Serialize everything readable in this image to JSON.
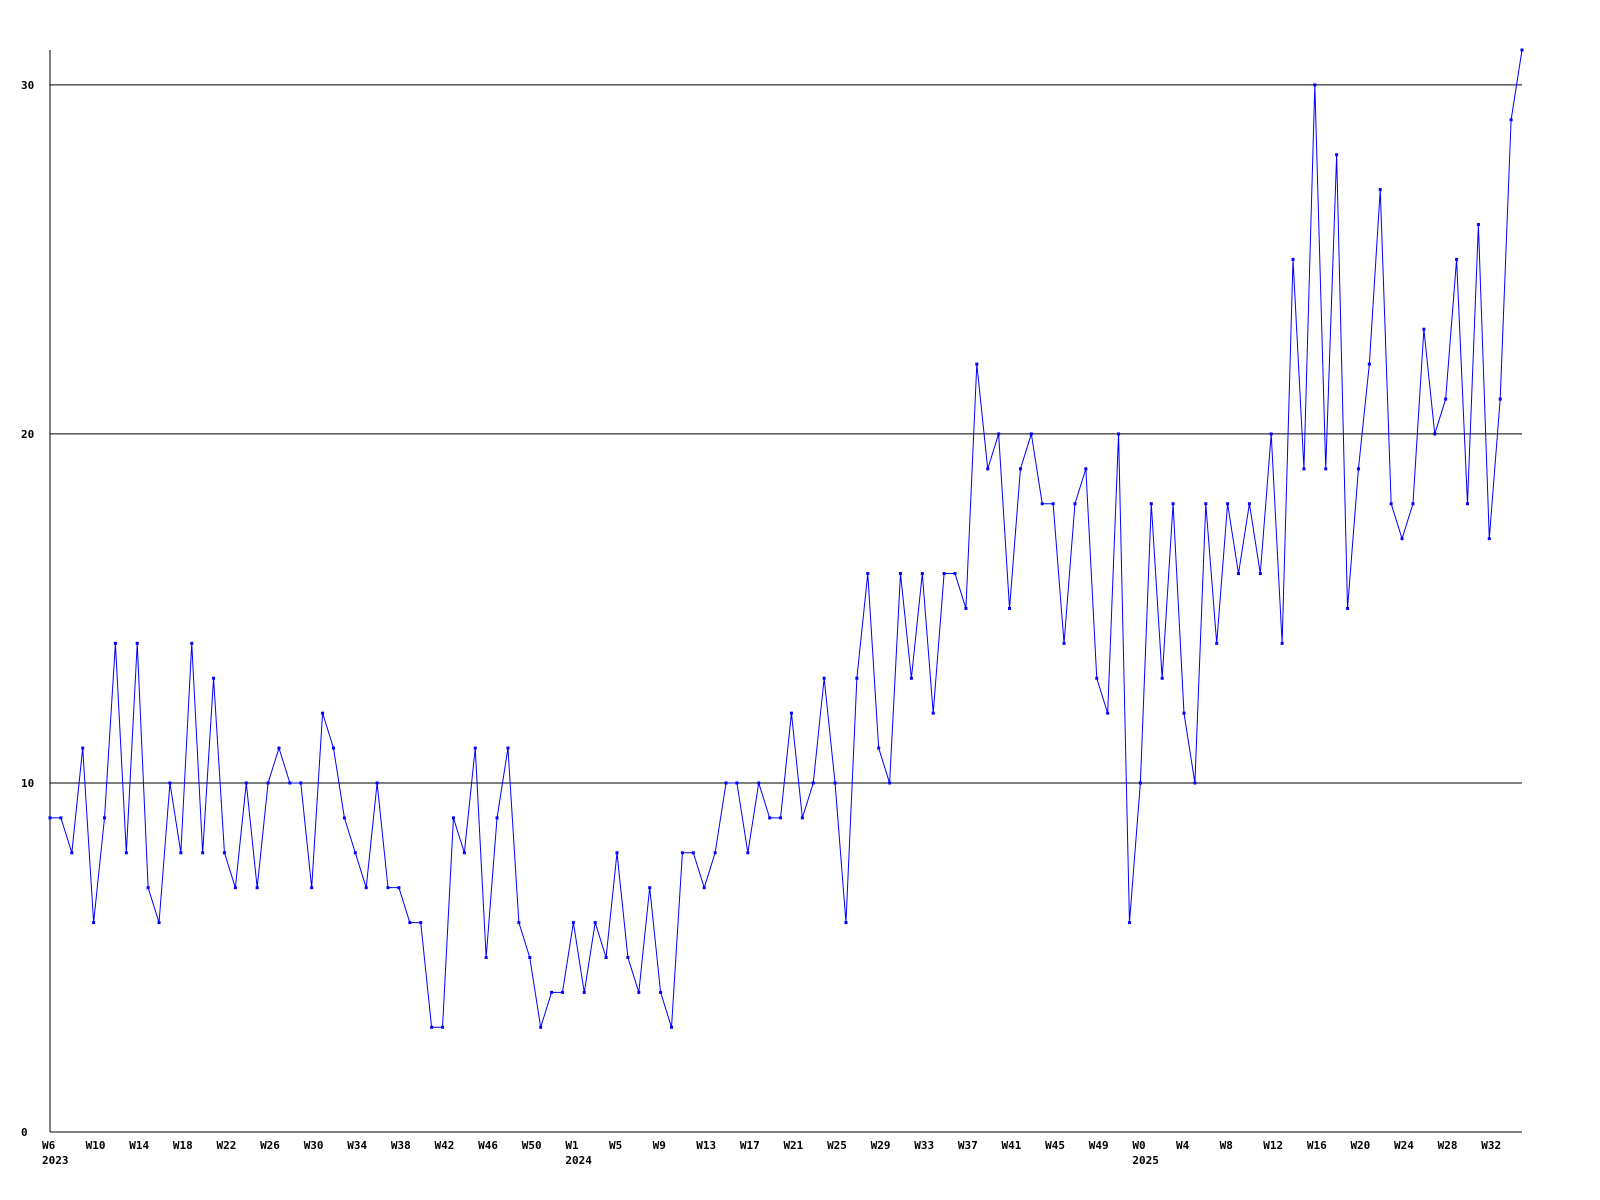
{
  "chart_data": {
    "type": "line",
    "title": "",
    "xlabel": "",
    "ylabel": "",
    "ylim": [
      0,
      31
    ],
    "grid": {
      "horizontal": true,
      "vertical": false
    },
    "legend": "none",
    "colors": {
      "series": "#0000ff",
      "axis": "#000000",
      "grid": "#000000",
      "background": "#ffffff"
    },
    "y_ticks": [
      0,
      10,
      20,
      30
    ],
    "x_ticks": [
      {
        "label": "W6",
        "year": "2023"
      },
      {
        "label": "W10"
      },
      {
        "label": "W14"
      },
      {
        "label": "W18"
      },
      {
        "label": "W22"
      },
      {
        "label": "W26"
      },
      {
        "label": "W30"
      },
      {
        "label": "W34"
      },
      {
        "label": "W38"
      },
      {
        "label": "W42"
      },
      {
        "label": "W46"
      },
      {
        "label": "W50"
      },
      {
        "label": "W1",
        "year": "2024"
      },
      {
        "label": "W5"
      },
      {
        "label": "W9"
      },
      {
        "label": "W13"
      },
      {
        "label": "W17"
      },
      {
        "label": "W21"
      },
      {
        "label": "W25"
      },
      {
        "label": "W29"
      },
      {
        "label": "W33"
      },
      {
        "label": "W37"
      },
      {
        "label": "W41"
      },
      {
        "label": "W45"
      },
      {
        "label": "W49"
      },
      {
        "label": "W0",
        "year": "2025"
      },
      {
        "label": "W4"
      },
      {
        "label": "W8"
      },
      {
        "label": "W12"
      },
      {
        "label": "W16"
      },
      {
        "label": "W20"
      },
      {
        "label": "W24"
      },
      {
        "label": "W28"
      },
      {
        "label": "W32"
      }
    ],
    "series": [
      {
        "values": [
          9,
          9,
          8,
          11,
          6,
          9,
          14,
          8,
          14,
          7,
          6,
          10,
          8,
          14,
          8,
          13,
          8,
          7,
          10,
          7,
          10,
          11,
          10,
          10,
          7,
          12,
          11,
          9,
          8,
          7,
          10,
          7,
          7,
          6,
          6,
          3,
          3,
          9,
          8,
          11,
          5,
          9,
          11,
          6,
          5,
          3,
          4,
          4,
          6,
          4,
          6,
          5,
          8,
          5,
          4,
          7,
          4,
          3,
          8,
          8,
          7,
          8,
          10,
          10,
          8,
          10,
          9,
          9,
          12,
          9,
          10,
          13,
          10,
          6,
          13,
          16,
          11,
          10,
          16,
          13,
          16,
          12,
          16,
          16,
          15,
          22,
          19,
          20,
          15,
          19,
          20,
          18,
          18,
          14,
          18,
          19,
          13,
          12,
          20,
          6,
          10,
          18,
          13,
          18,
          12,
          10,
          18,
          14,
          18,
          16,
          18,
          16,
          20,
          14,
          25,
          19,
          30,
          19,
          28,
          15,
          19,
          22,
          27,
          18,
          17,
          18,
          23,
          20,
          21,
          25,
          18,
          26,
          17,
          21,
          29,
          31
        ]
      }
    ]
  }
}
